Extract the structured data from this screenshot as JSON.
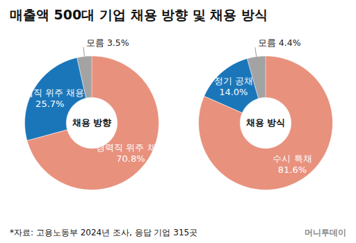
{
  "title": "매출액 500대 기업 채용 방향 및 채용 방식",
  "source": "*자료: 고용노동부 2024년 조사, 응답 기업 315곳",
  "credit": "머니투데이",
  "chart_data": [
    {
      "type": "donut",
      "title": "채용 방향",
      "categories": [
        "경력직 위주 채용",
        "신입직 위주 채용",
        "모름"
      ],
      "values": [
        70.8,
        25.7,
        3.5
      ],
      "value_labels": [
        "70.8%",
        "25.7%",
        "3.5%"
      ],
      "colors": [
        "#e8917d",
        "#1b76b9",
        "#a3a3a3"
      ],
      "data_labels": true
    },
    {
      "type": "donut",
      "title": "채용 방식",
      "categories": [
        "수시 특채",
        "정기 공채",
        "모름"
      ],
      "values": [
        81.6,
        14,
        4.4
      ],
      "value_labels": [
        "81.6%",
        "14.0%",
        "4.4%"
      ],
      "colors": [
        "#e8917d",
        "#1b76b9",
        "#a3a3a3"
      ],
      "data_labels": true
    }
  ]
}
